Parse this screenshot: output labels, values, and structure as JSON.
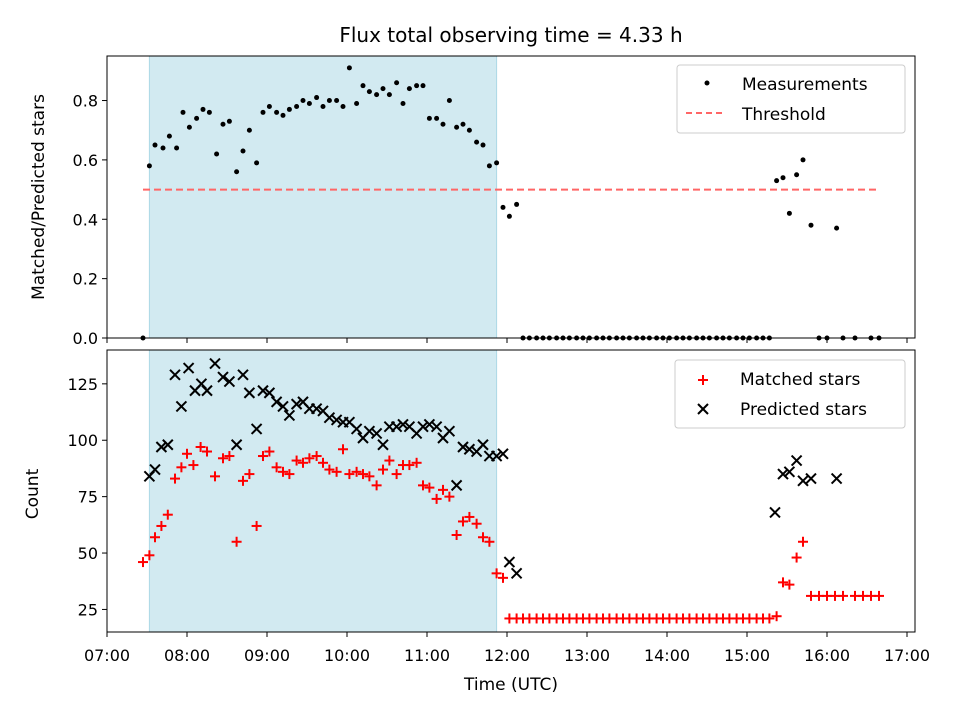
{
  "title": "Flux total observing time = 4.33 h",
  "xlabel": "Time (UTC)",
  "xticks": [
    "07:00",
    "08:00",
    "09:00",
    "10:00",
    "11:00",
    "12:00",
    "13:00",
    "14:00",
    "15:00",
    "16:00",
    "17:00"
  ],
  "colors": {
    "shade": "#add8e6",
    "threshold": "#ff6666",
    "matched": "#ff0000",
    "predicted": "#000000"
  },
  "chart_data": [
    {
      "type": "scatter",
      "ylabel": "Matched/Predicted stars",
      "xlim_hours": [
        7.0,
        17.1
      ],
      "ylim": [
        0.0,
        0.95
      ],
      "yticks": [
        "0.0",
        "0.2",
        "0.4",
        "0.6",
        "0.8"
      ],
      "shaded_span_hours": [
        7.53,
        11.87
      ],
      "legend": {
        "placement": "upper-right",
        "entries": [
          "Measurements",
          "Threshold"
        ]
      },
      "threshold": {
        "name": "Threshold",
        "value": 0.5,
        "x_range_hours": [
          7.45,
          16.65
        ]
      },
      "series": [
        {
          "name": "Measurements",
          "x_hours": [
            7.45,
            7.53,
            7.6,
            7.7,
            7.78,
            7.87,
            7.95,
            8.03,
            8.12,
            8.2,
            8.28,
            8.37,
            8.45,
            8.53,
            8.62,
            8.7,
            8.78,
            8.87,
            8.95,
            9.03,
            9.12,
            9.2,
            9.28,
            9.37,
            9.45,
            9.53,
            9.62,
            9.7,
            9.78,
            9.87,
            9.95,
            10.03,
            10.12,
            10.2,
            10.28,
            10.37,
            10.45,
            10.53,
            10.62,
            10.7,
            10.78,
            10.87,
            10.95,
            11.03,
            11.12,
            11.2,
            11.28,
            11.37,
            11.45,
            11.53,
            11.62,
            11.7,
            11.78,
            11.87,
            11.95,
            12.03,
            12.12,
            12.2,
            12.28,
            12.37,
            12.45,
            12.53,
            12.62,
            12.7,
            12.78,
            12.87,
            12.95,
            13.03,
            13.12,
            13.2,
            13.28,
            13.37,
            13.45,
            13.53,
            13.62,
            13.7,
            13.78,
            13.87,
            13.95,
            14.03,
            14.12,
            14.2,
            14.28,
            14.37,
            14.45,
            14.53,
            14.62,
            14.7,
            14.78,
            14.87,
            14.95,
            15.03,
            15.12,
            15.2,
            15.28,
            15.37,
            15.45,
            15.53,
            15.62,
            15.7,
            15.8,
            15.9,
            16.0,
            16.12,
            16.2,
            16.35,
            16.55,
            16.65
          ],
          "y": [
            0.0,
            0.58,
            0.65,
            0.64,
            0.68,
            0.64,
            0.76,
            0.71,
            0.74,
            0.77,
            0.76,
            0.62,
            0.72,
            0.73,
            0.56,
            0.63,
            0.7,
            0.59,
            0.76,
            0.78,
            0.76,
            0.75,
            0.77,
            0.78,
            0.8,
            0.79,
            0.81,
            0.78,
            0.8,
            0.8,
            0.78,
            0.91,
            0.79,
            0.85,
            0.83,
            0.82,
            0.84,
            0.82,
            0.86,
            0.79,
            0.84,
            0.85,
            0.85,
            0.74,
            0.74,
            0.72,
            0.8,
            0.71,
            0.72,
            0.7,
            0.66,
            0.65,
            0.58,
            0.59,
            0.44,
            0.41,
            0.45,
            0.0,
            0.0,
            0.0,
            0.0,
            0.0,
            0.0,
            0.0,
            0.0,
            0.0,
            0.0,
            0.0,
            0.0,
            0.0,
            0.0,
            0.0,
            0.0,
            0.0,
            0.0,
            0.0,
            0.0,
            0.0,
            0.0,
            0.0,
            0.0,
            0.0,
            0.0,
            0.0,
            0.0,
            0.0,
            0.0,
            0.0,
            0.0,
            0.0,
            0.0,
            0.0,
            0.0,
            0.0,
            0.0,
            0.53,
            0.54,
            0.42,
            0.55,
            0.6,
            0.38,
            0.0,
            0.0,
            0.37,
            0.0,
            0.0,
            0.0,
            0.0
          ]
        }
      ]
    },
    {
      "type": "scatter",
      "ylabel": "Count",
      "xlabel": "Time (UTC)",
      "xlim_hours": [
        7.0,
        17.1
      ],
      "ylim": [
        15,
        140
      ],
      "yticks": [
        "25",
        "50",
        "75",
        "100",
        "125"
      ],
      "shaded_span_hours": [
        7.53,
        11.87
      ],
      "legend": {
        "placement": "upper-right",
        "entries": [
          "Matched stars",
          "Predicted stars"
        ]
      },
      "series": [
        {
          "name": "Matched stars",
          "marker": "+",
          "x_hours": [
            7.45,
            7.53,
            7.6,
            7.68,
            7.76,
            7.85,
            7.93,
            8.0,
            8.08,
            8.17,
            8.25,
            8.35,
            8.45,
            8.53,
            8.62,
            8.7,
            8.78,
            8.87,
            8.95,
            9.03,
            9.12,
            9.2,
            9.28,
            9.37,
            9.45,
            9.53,
            9.62,
            9.7,
            9.78,
            9.87,
            9.95,
            10.03,
            10.12,
            10.2,
            10.28,
            10.37,
            10.45,
            10.53,
            10.62,
            10.7,
            10.78,
            10.87,
            10.95,
            11.03,
            11.12,
            11.2,
            11.28,
            11.37,
            11.45,
            11.53,
            11.62,
            11.7,
            11.78,
            11.87,
            11.95,
            12.03,
            12.12,
            12.2,
            12.28,
            12.37,
            12.45,
            12.53,
            12.62,
            12.7,
            12.78,
            12.87,
            12.95,
            13.03,
            13.12,
            13.2,
            13.28,
            13.37,
            13.45,
            13.53,
            13.62,
            13.7,
            13.78,
            13.87,
            13.95,
            14.03,
            14.12,
            14.2,
            14.28,
            14.37,
            14.45,
            14.53,
            14.62,
            14.7,
            14.78,
            14.87,
            14.95,
            15.03,
            15.12,
            15.2,
            15.28,
            15.37,
            15.45,
            15.53,
            15.62,
            15.7,
            15.8,
            15.9,
            16.0,
            16.1,
            16.2,
            16.35,
            16.45,
            16.55,
            16.65
          ],
          "y": [
            46,
            49,
            57,
            62,
            67,
            83,
            88,
            94,
            89,
            97,
            95,
            84,
            92,
            93,
            55,
            82,
            85,
            62,
            93,
            95,
            88,
            86,
            85,
            91,
            90,
            92,
            93,
            90,
            87,
            86,
            96,
            85,
            86,
            85,
            84,
            80,
            87,
            91,
            85,
            89,
            89,
            90,
            80,
            79,
            74,
            78,
            75,
            58,
            64,
            66,
            63,
            57,
            55,
            41,
            39,
            21,
            21,
            21,
            21,
            21,
            21,
            21,
            21,
            21,
            21,
            21,
            21,
            21,
            21,
            21,
            21,
            21,
            21,
            21,
            21,
            21,
            21,
            21,
            21,
            21,
            21,
            21,
            21,
            21,
            21,
            21,
            21,
            21,
            21,
            21,
            21,
            21,
            21,
            21,
            21,
            22,
            37,
            36,
            48,
            55,
            31,
            31,
            31,
            31,
            31,
            31,
            31,
            31,
            31
          ]
        },
        {
          "name": "Predicted stars",
          "marker": "x",
          "x_hours": [
            7.53,
            7.6,
            7.68,
            7.76,
            7.85,
            7.93,
            8.02,
            8.1,
            8.18,
            8.25,
            8.35,
            8.45,
            8.53,
            8.62,
            8.7,
            8.78,
            8.87,
            8.95,
            9.03,
            9.12,
            9.2,
            9.28,
            9.37,
            9.45,
            9.53,
            9.62,
            9.7,
            9.78,
            9.87,
            9.95,
            10.03,
            10.12,
            10.2,
            10.28,
            10.37,
            10.45,
            10.53,
            10.62,
            10.7,
            10.78,
            10.87,
            10.95,
            11.03,
            11.12,
            11.2,
            11.28,
            11.37,
            11.45,
            11.53,
            11.62,
            11.7,
            11.78,
            11.87,
            11.95,
            12.03,
            12.12,
            15.35,
            15.45,
            15.53,
            15.62,
            15.7,
            15.8,
            16.12
          ],
          "y": [
            84,
            87,
            97,
            98,
            129,
            115,
            132,
            122,
            125,
            122,
            134,
            128,
            126,
            98,
            129,
            121,
            105,
            122,
            121,
            117,
            115,
            111,
            116,
            117,
            114,
            114,
            113,
            110,
            109,
            108,
            108,
            105,
            101,
            104,
            103,
            98,
            106,
            106,
            107,
            106,
            103,
            106,
            107,
            106,
            101,
            104,
            80,
            97,
            96,
            95,
            98,
            93,
            93,
            94,
            46,
            41,
            68,
            85,
            86,
            91,
            82,
            83,
            83
          ]
        }
      ]
    }
  ]
}
